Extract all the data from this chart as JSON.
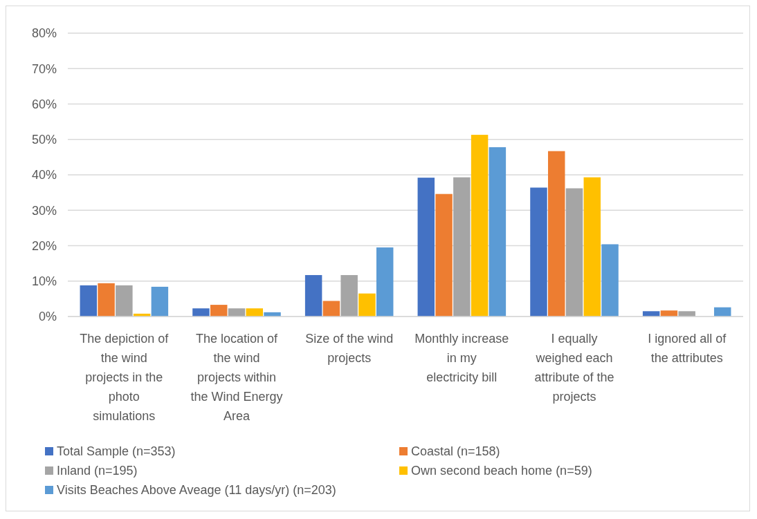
{
  "chart_data": {
    "type": "bar",
    "categories": [
      "The depiction of the wind projects in the photo simulations",
      "The location of the wind projects within the Wind Energy Area",
      "Size of the wind projects",
      "Monthly increase in my electricity bill",
      "I equally weighed each attribute of the projects",
      "I ignored all of the attributes"
    ],
    "series": [
      {
        "name": "Total Sample (n=353)",
        "color": "#4472c4",
        "values": [
          8.8,
          2.3,
          11.7,
          39.2,
          36.4,
          1.5
        ]
      },
      {
        "name": "Coastal (n=158)",
        "color": "#ed7d31",
        "values": [
          9.4,
          3.3,
          4.4,
          34.6,
          46.7,
          1.7
        ]
      },
      {
        "name": "Inland (n=195)",
        "color": "#a5a5a5",
        "values": [
          8.8,
          2.3,
          11.7,
          39.3,
          36.2,
          1.5
        ]
      },
      {
        "name": "Own second beach home (n=59)",
        "color": "#ffc000",
        "values": [
          0.8,
          2.3,
          6.5,
          51.3,
          39.3,
          0
        ]
      },
      {
        "name": "Visits Beaches Above Aveage (11 days/yr) (n=203)",
        "color": "#5b9bd5",
        "values": [
          8.4,
          1.2,
          19.5,
          47.8,
          20.4,
          2.6
        ]
      }
    ],
    "ylim": [
      0,
      80
    ],
    "yticks": [
      {
        "value": 0,
        "label": "0%"
      },
      {
        "value": 10,
        "label": "10%"
      },
      {
        "value": 20,
        "label": "20%"
      },
      {
        "value": 30,
        "label": "30%"
      },
      {
        "value": 40,
        "label": "40%"
      },
      {
        "value": 50,
        "label": "50%"
      },
      {
        "value": 60,
        "label": "60%"
      },
      {
        "value": 70,
        "label": "70%"
      },
      {
        "value": 80,
        "label": "80%"
      }
    ],
    "grid": "y",
    "legend": "bottom"
  }
}
